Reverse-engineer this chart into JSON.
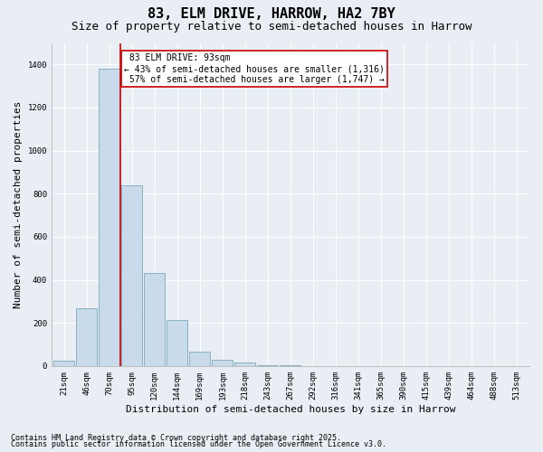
{
  "title": "83, ELM DRIVE, HARROW, HA2 7BY",
  "subtitle": "Size of property relative to semi-detached houses in Harrow",
  "xlabel": "Distribution of semi-detached houses by size in Harrow",
  "ylabel": "Number of semi-detached properties",
  "categories": [
    "21sqm",
    "46sqm",
    "70sqm",
    "95sqm",
    "120sqm",
    "144sqm",
    "169sqm",
    "193sqm",
    "218sqm",
    "243sqm",
    "267sqm",
    "292sqm",
    "316sqm",
    "341sqm",
    "365sqm",
    "390sqm",
    "415sqm",
    "439sqm",
    "464sqm",
    "488sqm",
    "513sqm"
  ],
  "values": [
    25,
    270,
    1380,
    840,
    430,
    215,
    65,
    30,
    15,
    5,
    2,
    1,
    0,
    0,
    0,
    0,
    0,
    0,
    0,
    0,
    0
  ],
  "bar_color": "#c9daea",
  "bar_edge_color": "#7aaabe",
  "property_label": "83 ELM DRIVE: 93sqm",
  "pct_smaller": 43,
  "pct_larger": 57,
  "count_smaller": 1316,
  "count_larger": 1747,
  "vline_color": "#cc0000",
  "vline_bin_index": 2.5,
  "annotation_box_color": "#cc0000",
  "ylim": [
    0,
    1500
  ],
  "yticks": [
    0,
    200,
    400,
    600,
    800,
    1000,
    1200,
    1400
  ],
  "footnote1": "Contains HM Land Registry data © Crown copyright and database right 2025.",
  "footnote2": "Contains public sector information licensed under the Open Government Licence v3.0.",
  "background_color": "#e8eef4",
  "grid_color": "#ffffff",
  "title_fontsize": 11,
  "subtitle_fontsize": 9,
  "axis_label_fontsize": 8,
  "tick_fontsize": 6.5,
  "annotation_fontsize": 7,
  "footnote_fontsize": 6
}
